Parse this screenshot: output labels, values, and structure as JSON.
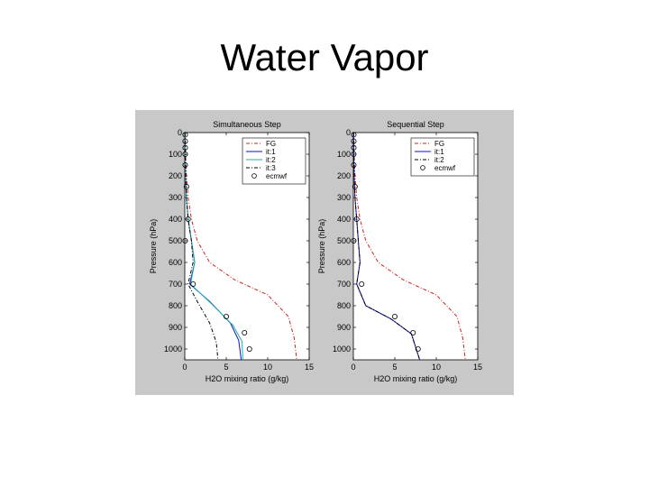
{
  "slide": {
    "title": "Water Vapor"
  },
  "chart_data": [
    {
      "type": "line",
      "title": "Simultaneous Step",
      "xlabel": "H2O mixing ratio (g/kg)",
      "ylabel": "Pressure (hPa)",
      "xlim": [
        0,
        15
      ],
      "ylim": [
        0,
        1050
      ],
      "y_reversed": true,
      "xticks": [
        "0",
        "5",
        "10",
        "15"
      ],
      "yticks": [
        "0",
        "100",
        "200",
        "300",
        "400",
        "500",
        "600",
        "700",
        "800",
        "900",
        "1000"
      ],
      "legend": "top-right",
      "series": [
        {
          "name": "FG",
          "color": "#cc2020",
          "style": "dash-dot",
          "x": [
            0.05,
            0.1,
            0.2,
            0.4,
            0.8,
            1.5,
            3.0,
            6.0,
            10.0,
            12.5,
            13.2,
            13.5
          ],
          "y": [
            0,
            100,
            200,
            300,
            400,
            500,
            600,
            680,
            750,
            850,
            950,
            1050
          ]
        },
        {
          "name": "it:1",
          "color": "#1010c0",
          "style": "solid",
          "x": [
            0.02,
            0.05,
            0.1,
            0.2,
            0.4,
            0.8,
            1.2,
            0.6,
            3.0,
            5.5,
            6.5,
            6.8
          ],
          "y": [
            0,
            100,
            200,
            300,
            400,
            500,
            600,
            700,
            780,
            880,
            960,
            1050
          ]
        },
        {
          "name": "it:2",
          "color": "#20b0b0",
          "style": "solid",
          "x": [
            0.02,
            0.05,
            0.1,
            0.2,
            0.4,
            0.8,
            1.2,
            0.7,
            3.2,
            5.8,
            6.9,
            7.0
          ],
          "y": [
            0,
            100,
            200,
            300,
            400,
            500,
            600,
            700,
            790,
            890,
            965,
            1050
          ]
        },
        {
          "name": "it:3",
          "color": "#000000",
          "style": "dash-dot",
          "x": [
            0.02,
            0.05,
            0.1,
            0.2,
            0.4,
            0.8,
            1.0,
            0.4,
            1.5,
            3.0,
            3.8,
            4.0
          ],
          "y": [
            0,
            100,
            200,
            300,
            400,
            500,
            600,
            700,
            780,
            880,
            970,
            1050
          ]
        },
        {
          "name": "ecmwf",
          "color": "#000000",
          "style": "circle",
          "x": [
            0.05,
            0.05,
            0.05,
            0.05,
            0.05,
            0.2,
            0.4,
            0.05,
            1.0,
            5.0,
            7.2,
            7.8
          ],
          "y": [
            10,
            40,
            70,
            100,
            150,
            250,
            400,
            500,
            700,
            850,
            925,
            1000
          ]
        }
      ]
    },
    {
      "type": "line",
      "title": "Sequential Step",
      "xlabel": "H2O mixing ratio (g/kg)",
      "ylabel": "Pressure (hPa)",
      "xlim": [
        0,
        15
      ],
      "ylim": [
        0,
        1050
      ],
      "y_reversed": true,
      "xticks": [
        "0",
        "5",
        "10",
        "15"
      ],
      "yticks": [
        "0",
        "100",
        "200",
        "300",
        "400",
        "500",
        "600",
        "700",
        "800",
        "900",
        "1000"
      ],
      "legend": "top-right",
      "series": [
        {
          "name": "FG",
          "color": "#cc2020",
          "style": "dash-dot",
          "x": [
            0.05,
            0.1,
            0.2,
            0.4,
            0.8,
            1.5,
            3.0,
            6.0,
            10.0,
            12.5,
            13.2,
            13.5
          ],
          "y": [
            0,
            100,
            200,
            300,
            400,
            500,
            600,
            680,
            750,
            850,
            950,
            1050
          ]
        },
        {
          "name": "it:1",
          "color": "#1010c0",
          "style": "solid",
          "x": [
            0.02,
            0.05,
            0.1,
            0.2,
            0.4,
            0.6,
            0.8,
            0.4,
            1.5,
            4.5,
            7.0,
            8.0
          ],
          "y": [
            0,
            100,
            200,
            300,
            400,
            500,
            600,
            700,
            800,
            860,
            930,
            1050
          ]
        },
        {
          "name": "it:2",
          "color": "#000000",
          "style": "dash-dot",
          "x": [
            0.02,
            0.05,
            0.1,
            0.2,
            0.4,
            0.6,
            0.8,
            0.4,
            1.5,
            4.5,
            7.0,
            8.0
          ],
          "y": [
            0,
            100,
            200,
            300,
            400,
            500,
            600,
            700,
            800,
            860,
            930,
            1050
          ]
        },
        {
          "name": "ecmwf",
          "color": "#000000",
          "style": "circle",
          "x": [
            0.05,
            0.05,
            0.05,
            0.05,
            0.05,
            0.2,
            0.4,
            0.05,
            1.0,
            5.0,
            7.2,
            7.8
          ],
          "y": [
            10,
            40,
            70,
            100,
            150,
            250,
            400,
            500,
            700,
            850,
            925,
            1000
          ]
        }
      ]
    }
  ]
}
